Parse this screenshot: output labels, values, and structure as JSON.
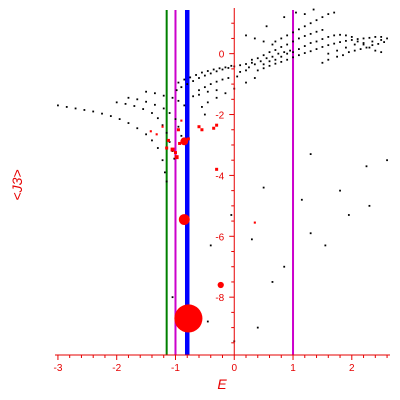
{
  "chart_data": {
    "type": "scatter",
    "title": "",
    "xlabel": "E",
    "ylabel": "<J3>",
    "xlim": [
      -3.05,
      2.65
    ],
    "ylim": [
      -9.9,
      1.5
    ],
    "x_ticks": [
      -3,
      -2,
      -1,
      0,
      1,
      2
    ],
    "y_ticks": [
      0,
      -2,
      -4,
      -6,
      -8
    ],
    "grid": false,
    "colors": {
      "axis": "#e60000",
      "points": "#000000",
      "highlight": "#ff0000",
      "line_green": "#008000",
      "line_magenta": "#cc00cc",
      "line_blue": "#0000ff"
    },
    "vertical_lines": [
      {
        "x": -1.15,
        "color": "#008000",
        "weight": "thin"
      },
      {
        "x": -1.0,
        "color": "#cc00cc",
        "weight": "thin"
      },
      {
        "x": -0.8,
        "color": "#0000ff",
        "weight": "thick"
      },
      {
        "x": 1.0,
        "color": "#cc00cc",
        "weight": "thin"
      }
    ],
    "series": [
      {
        "kind": "small-dots",
        "color": "#000000",
        "points": [
          [
            -3.0,
            -1.7
          ],
          [
            -2.85,
            -1.75
          ],
          [
            -2.7,
            -1.8
          ],
          [
            -2.55,
            -1.85
          ],
          [
            -2.4,
            -1.9
          ],
          [
            -2.25,
            -1.97
          ],
          [
            -2.1,
            -2.05
          ],
          [
            -1.95,
            -2.15
          ],
          [
            -1.8,
            -2.28
          ],
          [
            -1.65,
            -2.45
          ],
          [
            -1.5,
            -2.65
          ],
          [
            -1.4,
            -2.85
          ],
          [
            -1.3,
            -3.1
          ],
          [
            -1.22,
            -3.5
          ],
          [
            -1.18,
            -3.9
          ],
          [
            -1.15,
            -4.2
          ],
          [
            -2.0,
            -1.6
          ],
          [
            -1.85,
            -1.65
          ],
          [
            -1.7,
            -1.72
          ],
          [
            -1.55,
            -1.82
          ],
          [
            -1.4,
            -1.95
          ],
          [
            -1.3,
            -2.12
          ],
          [
            -1.22,
            -2.35
          ],
          [
            -1.15,
            -2.6
          ],
          [
            -1.1,
            -2.9
          ],
          [
            -1.05,
            -3.2
          ],
          [
            -1.02,
            -3.45
          ],
          [
            -1.8,
            -1.45
          ],
          [
            -1.65,
            -1.5
          ],
          [
            -1.5,
            -1.58
          ],
          [
            -1.35,
            -1.68
          ],
          [
            -1.2,
            -1.8
          ],
          [
            -1.1,
            -1.95
          ],
          [
            -1.0,
            -2.15
          ],
          [
            -0.95,
            -2.4
          ],
          [
            -0.9,
            -2.7
          ],
          [
            -0.85,
            -2.95
          ],
          [
            -1.5,
            -1.25
          ],
          [
            -1.35,
            -1.3
          ],
          [
            -1.2,
            -1.38
          ],
          [
            -1.05,
            -1.45
          ],
          [
            -0.95,
            -1.55
          ],
          [
            -0.85,
            -1.7
          ],
          [
            -0.98,
            -1.2
          ],
          [
            -0.9,
            -1.1
          ],
          [
            -0.8,
            -1.0
          ],
          [
            -0.7,
            -0.9
          ],
          [
            -0.6,
            -0.8
          ],
          [
            -0.5,
            -0.72
          ],
          [
            -0.4,
            -0.65
          ],
          [
            -0.3,
            -0.58
          ],
          [
            -0.2,
            -0.52
          ],
          [
            -0.1,
            -0.47
          ],
          [
            0.0,
            -0.42
          ],
          [
            0.1,
            -0.38
          ],
          [
            0.2,
            -0.34
          ],
          [
            0.3,
            -0.3
          ],
          [
            -0.95,
            -0.95
          ],
          [
            -0.85,
            -0.85
          ],
          [
            -0.75,
            -0.78
          ],
          [
            -0.65,
            -0.7
          ],
          [
            -0.55,
            -0.62
          ],
          [
            -0.45,
            -0.57
          ],
          [
            -0.35,
            -0.52
          ],
          [
            -0.25,
            -0.48
          ],
          [
            -0.15,
            -0.45
          ],
          [
            -0.05,
            -0.4
          ],
          [
            -0.6,
            -1.2
          ],
          [
            -0.5,
            -1.1
          ],
          [
            -0.4,
            -1.0
          ],
          [
            -0.3,
            -0.92
          ],
          [
            -0.2,
            -0.85
          ],
          [
            -0.1,
            -0.8
          ],
          [
            0.05,
            -0.75
          ],
          [
            -0.7,
            -1.4
          ],
          [
            -0.6,
            -1.35
          ],
          [
            -0.45,
            -1.25
          ],
          [
            -0.3,
            -1.2
          ],
          [
            0.1,
            -0.6
          ],
          [
            0.2,
            -0.55
          ],
          [
            0.25,
            -0.45
          ],
          [
            0.35,
            -0.35
          ],
          [
            0.45,
            -0.25
          ],
          [
            0.55,
            -0.15
          ],
          [
            0.65,
            -0.1
          ],
          [
            0.75,
            0.0
          ],
          [
            0.85,
            0.05
          ],
          [
            0.95,
            0.1
          ],
          [
            0.4,
            -0.55
          ],
          [
            0.5,
            -0.48
          ],
          [
            0.6,
            -0.4
          ],
          [
            0.7,
            -0.33
          ],
          [
            0.8,
            -0.27
          ],
          [
            0.9,
            -0.2
          ],
          [
            1.0,
            -0.12
          ],
          [
            1.1,
            -0.05
          ],
          [
            1.2,
            0.02
          ],
          [
            1.3,
            0.08
          ],
          [
            1.4,
            0.15
          ],
          [
            1.5,
            0.22
          ],
          [
            1.6,
            0.28
          ],
          [
            1.7,
            0.33
          ],
          [
            1.8,
            0.38
          ],
          [
            1.9,
            0.42
          ],
          [
            2.0,
            0.45
          ],
          [
            2.1,
            0.48
          ],
          [
            2.2,
            0.5
          ],
          [
            2.3,
            0.52
          ],
          [
            2.4,
            0.55
          ],
          [
            2.5,
            0.55
          ],
          [
            2.6,
            0.5
          ],
          [
            0.3,
            -0.2
          ],
          [
            0.4,
            -0.15
          ],
          [
            0.5,
            -0.05
          ],
          [
            0.6,
            0.05
          ],
          [
            0.7,
            0.12
          ],
          [
            0.8,
            0.22
          ],
          [
            0.9,
            0.3
          ],
          [
            1.0,
            0.4
          ],
          [
            1.1,
            0.5
          ],
          [
            1.2,
            0.58
          ],
          [
            1.3,
            0.65
          ],
          [
            1.4,
            0.72
          ],
          [
            1.5,
            0.78
          ],
          [
            0.5,
            -0.35
          ],
          [
            0.6,
            -0.25
          ],
          [
            0.7,
            -0.2
          ],
          [
            0.8,
            -0.1
          ],
          [
            0.9,
            0.0
          ],
          [
            1.0,
            0.05
          ],
          [
            1.1,
            0.15
          ],
          [
            1.2,
            0.25
          ],
          [
            1.3,
            0.35
          ],
          [
            1.4,
            0.4
          ],
          [
            1.5,
            0.48
          ],
          [
            1.6,
            0.55
          ],
          [
            1.7,
            0.6
          ],
          [
            1.8,
            0.62
          ],
          [
            1.9,
            0.6
          ],
          [
            2.0,
            0.55
          ],
          [
            2.1,
            0.4
          ],
          [
            2.2,
            0.3
          ],
          [
            2.3,
            0.2
          ],
          [
            2.4,
            0.1
          ],
          [
            2.5,
            0.05
          ],
          [
            0.7,
            0.4
          ],
          [
            0.8,
            0.5
          ],
          [
            0.9,
            0.6
          ],
          [
            1.0,
            0.7
          ],
          [
            1.1,
            0.8
          ],
          [
            1.2,
            0.9
          ],
          [
            1.3,
            1.0
          ],
          [
            1.4,
            1.1
          ],
          [
            1.5,
            1.2
          ],
          [
            1.6,
            1.3
          ],
          [
            1.7,
            1.35
          ],
          [
            0.2,
            0.6
          ],
          [
            0.35,
            0.5
          ],
          [
            0.5,
            0.4
          ],
          [
            0.65,
            0.3
          ],
          [
            0.55,
            0.9
          ],
          [
            0.85,
            1.2
          ],
          [
            1.05,
            1.35
          ],
          [
            1.2,
            1.3
          ],
          [
            1.35,
            1.45
          ],
          [
            1.5,
            -0.3
          ],
          [
            1.6,
            -0.2
          ],
          [
            1.75,
            -0.1
          ],
          [
            1.85,
            -0.05
          ],
          [
            1.95,
            0.05
          ],
          [
            2.05,
            0.1
          ],
          [
            2.15,
            0.15
          ],
          [
            2.25,
            0.2
          ],
          [
            2.35,
            0.28
          ],
          [
            2.45,
            0.32
          ],
          [
            2.55,
            0.38
          ],
          [
            1.6,
            0.0
          ],
          [
            1.75,
            0.1
          ],
          [
            1.9,
            0.2
          ],
          [
            2.05,
            0.3
          ],
          [
            2.2,
            0.35
          ],
          [
            2.35,
            0.4
          ],
          [
            2.5,
            0.45
          ],
          [
            -0.3,
            -1.45
          ],
          [
            -0.15,
            -1.3
          ],
          [
            0.0,
            -1.15
          ],
          [
            0.2,
            -0.95
          ],
          [
            0.35,
            -0.8
          ],
          [
            -0.55,
            -1.75
          ],
          [
            -0.45,
            -1.6
          ],
          [
            -0.5,
            -2.0
          ],
          [
            -0.55,
            -2.5
          ],
          [
            -0.4,
            -6.3
          ],
          [
            -0.05,
            -5.3
          ],
          [
            0.3,
            -6.1
          ],
          [
            0.5,
            -4.4
          ],
          [
            0.85,
            -7.0
          ],
          [
            1.15,
            -4.8
          ],
          [
            1.3,
            -5.9
          ],
          [
            1.55,
            -6.3
          ],
          [
            1.3,
            -3.3
          ],
          [
            1.8,
            -4.5
          ],
          [
            1.95,
            -5.3
          ],
          [
            2.25,
            -3.7
          ],
          [
            2.6,
            -3.5
          ],
          [
            2.3,
            -5.0
          ],
          [
            -1.05,
            -8.0
          ],
          [
            -0.45,
            -8.8
          ],
          [
            0.0,
            -9.45
          ],
          [
            0.4,
            -9.0
          ],
          [
            0.65,
            -7.5
          ]
        ]
      },
      {
        "kind": "red-markers",
        "color": "#ff0000",
        "points": [
          [
            -1.42,
            -2.55,
            1
          ],
          [
            -1.32,
            -2.65,
            1
          ],
          [
            -1.22,
            -2.4,
            1
          ],
          [
            -1.12,
            -2.85,
            2
          ],
          [
            -1.15,
            -3.1,
            2
          ],
          [
            -1.05,
            -3.15,
            3
          ],
          [
            -1.0,
            -3.25,
            2
          ],
          [
            -0.98,
            -3.4,
            3
          ],
          [
            -0.93,
            -2.95,
            2
          ],
          [
            -0.85,
            -2.88,
            5
          ],
          [
            -0.95,
            -2.5,
            2
          ],
          [
            -0.9,
            -2.2,
            1
          ],
          [
            -0.78,
            -2.8,
            2
          ],
          [
            -0.6,
            -2.4,
            2
          ],
          [
            -0.55,
            -2.5,
            2
          ],
          [
            -0.3,
            -2.35,
            2
          ],
          [
            -0.35,
            -2.45,
            2
          ],
          [
            -0.3,
            -3.8,
            2
          ],
          [
            0.35,
            -5.55,
            1
          ],
          [
            -0.85,
            -5.45,
            7
          ],
          [
            -0.23,
            -7.6,
            4
          ],
          [
            -0.78,
            -8.7,
            18
          ]
        ]
      }
    ]
  }
}
